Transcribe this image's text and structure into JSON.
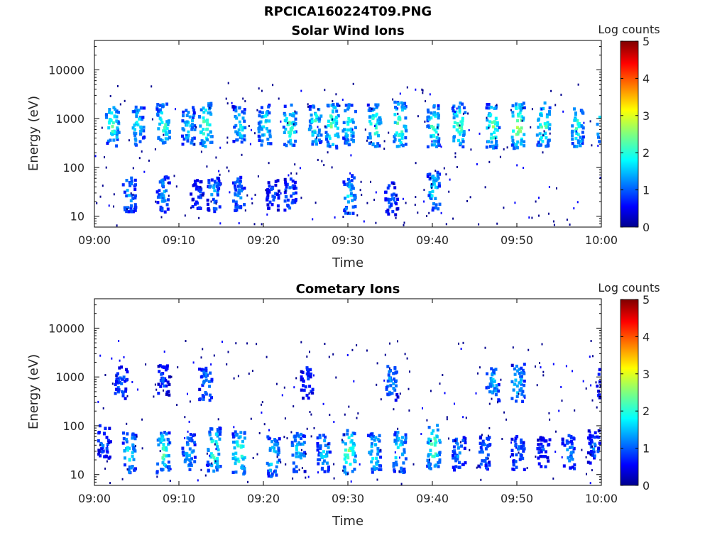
{
  "figure": {
    "title": "RPCICA160224T09.PNG"
  },
  "colorbar": {
    "label": "Log counts",
    "min": 0,
    "max": 5,
    "ticks": [
      "0",
      "1",
      "2",
      "3",
      "4",
      "5"
    ],
    "colormap": "jet"
  },
  "chart_data": [
    {
      "type": "heatmap",
      "title": "Solar Wind Ions",
      "xlabel": "Time",
      "ylabel": "Energy (eV)",
      "xlim": [
        "09:00",
        "10:00"
      ],
      "ylim": [
        6,
        40000
      ],
      "y_scale": "log",
      "x_ticks": [
        "09:00",
        "09:10",
        "09:20",
        "09:30",
        "09:40",
        "09:50",
        "10:00"
      ],
      "y_ticks": [
        "10",
        "100",
        "1000",
        "10000"
      ],
      "color_value": "Log counts",
      "clusters": [
        {
          "time": "09:02",
          "energy": 800,
          "level": 2.3
        },
        {
          "time": "09:05",
          "energy": 750,
          "level": 1.9
        },
        {
          "time": "09:08",
          "energy": 800,
          "level": 2.4
        },
        {
          "time": "09:11",
          "energy": 750,
          "level": 1.9
        },
        {
          "time": "09:13",
          "energy": 800,
          "level": 2.5
        },
        {
          "time": "09:17",
          "energy": 750,
          "level": 2.0
        },
        {
          "time": "09:20",
          "energy": 800,
          "level": 2.1
        },
        {
          "time": "09:23",
          "energy": 750,
          "level": 2.4
        },
        {
          "time": "09:26",
          "energy": 800,
          "level": 2.2
        },
        {
          "time": "09:28",
          "energy": 750,
          "level": 2.6
        },
        {
          "time": "09:30",
          "energy": 800,
          "level": 2.1
        },
        {
          "time": "09:33",
          "energy": 750,
          "level": 2.5
        },
        {
          "time": "09:36",
          "energy": 800,
          "level": 2.7
        },
        {
          "time": "09:40",
          "energy": 750,
          "level": 2.3
        },
        {
          "time": "09:43",
          "energy": 800,
          "level": 2.6
        },
        {
          "time": "09:47",
          "energy": 750,
          "level": 2.5
        },
        {
          "time": "09:50",
          "energy": 750,
          "level": 2.9
        },
        {
          "time": "09:53",
          "energy": 800,
          "level": 2.5
        },
        {
          "time": "09:57",
          "energy": 750,
          "level": 2.3
        },
        {
          "time": "10:00",
          "energy": 750,
          "level": 2.2
        },
        {
          "time": "09:04",
          "energy": 30,
          "level": 1.6
        },
        {
          "time": "09:08",
          "energy": 30,
          "level": 1.5
        },
        {
          "time": "09:12",
          "energy": 30,
          "level": 1.0
        },
        {
          "time": "09:14",
          "energy": 30,
          "level": 1.5
        },
        {
          "time": "09:17",
          "energy": 30,
          "level": 1.4
        },
        {
          "time": "09:21",
          "energy": 30,
          "level": 1.0
        },
        {
          "time": "09:23",
          "energy": 30,
          "level": 1.2
        },
        {
          "time": "09:30",
          "energy": 30,
          "level": 1.8
        },
        {
          "time": "09:35",
          "energy": 25,
          "level": 1.2
        },
        {
          "time": "09:40",
          "energy": 35,
          "level": 1.9
        }
      ]
    },
    {
      "type": "heatmap",
      "title": "Cometary Ions",
      "xlabel": "Time",
      "ylabel": "Energy (eV)",
      "xlim": [
        "09:00",
        "10:00"
      ],
      "ylim": [
        6,
        40000
      ],
      "y_scale": "log",
      "x_ticks": [
        "09:00",
        "09:10",
        "09:20",
        "09:30",
        "09:40",
        "09:50",
        "10:00"
      ],
      "y_ticks": [
        "10",
        "100",
        "1000",
        "10000"
      ],
      "color_value": "Log counts",
      "clusters": [
        {
          "time": "09:01",
          "energy": 50,
          "level": 1.2
        },
        {
          "time": "09:04",
          "energy": 30,
          "level": 2.0
        },
        {
          "time": "09:08",
          "energy": 30,
          "level": 2.3
        },
        {
          "time": "09:11",
          "energy": 30,
          "level": 1.7
        },
        {
          "time": "09:14",
          "energy": 35,
          "level": 2.5
        },
        {
          "time": "09:17",
          "energy": 30,
          "level": 2.5
        },
        {
          "time": "09:21",
          "energy": 25,
          "level": 2.0
        },
        {
          "time": "09:24",
          "energy": 30,
          "level": 1.9
        },
        {
          "time": "09:27",
          "energy": 30,
          "level": 1.8
        },
        {
          "time": "09:30",
          "energy": 30,
          "level": 2.6
        },
        {
          "time": "09:33",
          "energy": 30,
          "level": 2.0
        },
        {
          "time": "09:36",
          "energy": 30,
          "level": 2.2
        },
        {
          "time": "09:40",
          "energy": 40,
          "level": 2.6
        },
        {
          "time": "09:43",
          "energy": 30,
          "level": 1.5
        },
        {
          "time": "09:46",
          "energy": 30,
          "level": 1.3
        },
        {
          "time": "09:50",
          "energy": 30,
          "level": 1.4
        },
        {
          "time": "09:53",
          "energy": 30,
          "level": 1.0
        },
        {
          "time": "09:56",
          "energy": 30,
          "level": 1.4
        },
        {
          "time": "09:59",
          "energy": 40,
          "level": 1.2
        },
        {
          "time": "09:03",
          "energy": 800,
          "level": 1.2
        },
        {
          "time": "09:08",
          "energy": 900,
          "level": 1.0
        },
        {
          "time": "09:13",
          "energy": 800,
          "level": 1.4
        },
        {
          "time": "09:25",
          "energy": 800,
          "level": 1.0
        },
        {
          "time": "09:35",
          "energy": 800,
          "level": 1.5
        },
        {
          "time": "09:47",
          "energy": 800,
          "level": 1.6
        },
        {
          "time": "09:50",
          "energy": 800,
          "level": 1.8
        },
        {
          "time": "10:00",
          "energy": 800,
          "level": 1.0
        }
      ]
    }
  ]
}
